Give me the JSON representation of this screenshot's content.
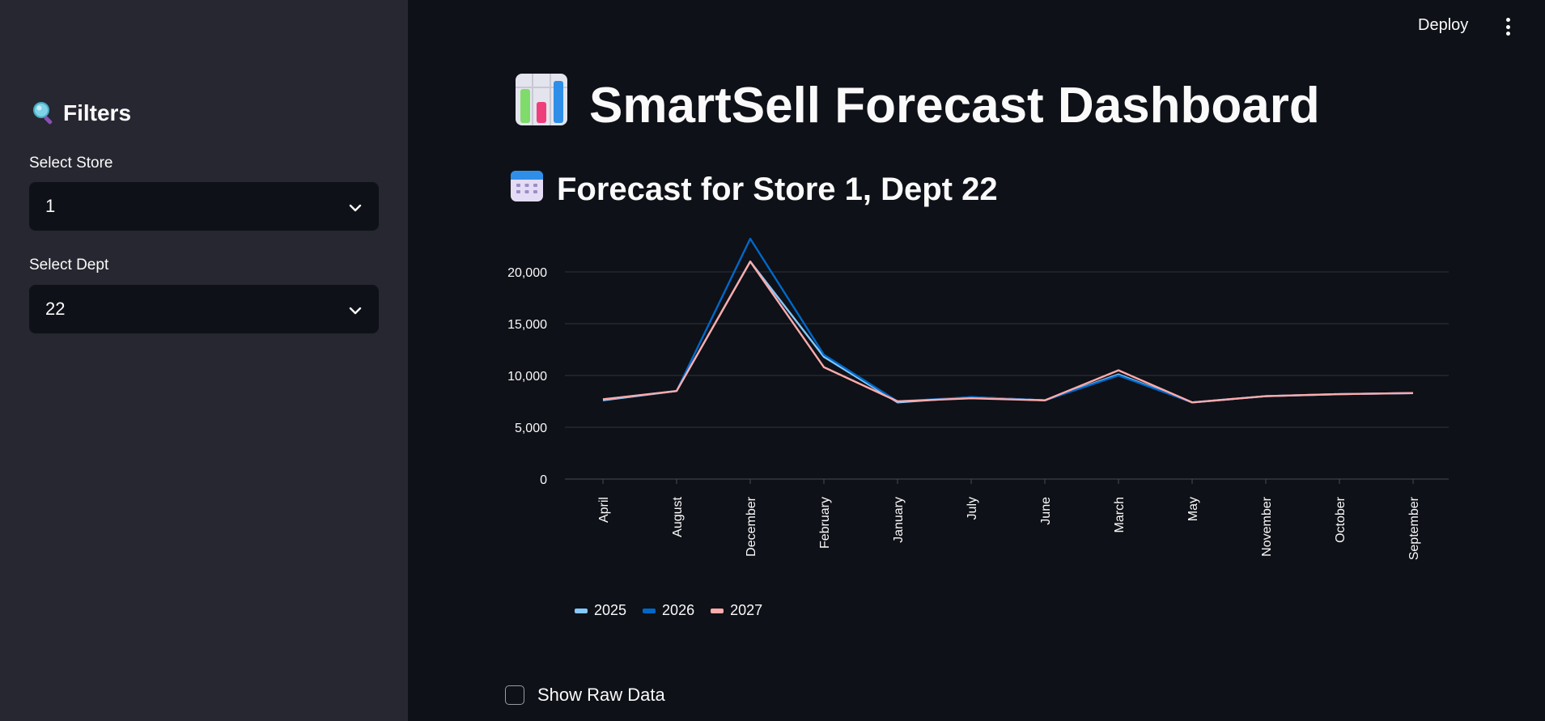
{
  "header": {
    "deploy_label": "Deploy",
    "menu_icon": "kebab-menu-icon"
  },
  "sidebar": {
    "title": "Filters",
    "title_icon": "magnifier-icon",
    "store": {
      "label": "Select Store",
      "value": "1"
    },
    "dept": {
      "label": "Select Dept",
      "value": "22"
    }
  },
  "main": {
    "title": "SmartSell Forecast Dashboard",
    "title_icon": "bar-chart-icon",
    "subtitle": "Forecast for Store 1, Dept 22",
    "subtitle_icon": "calendar-icon",
    "raw_data_label": "Show Raw Data"
  },
  "colors": {
    "background": "#0e1117",
    "sidebar": "#262730",
    "series_2025": "#83c9ff",
    "series_2026": "#0068c9",
    "series_2027": "#ffabab"
  },
  "chart_data": {
    "type": "line",
    "categories": [
      "April",
      "August",
      "December",
      "February",
      "January",
      "July",
      "June",
      "March",
      "May",
      "November",
      "October",
      "September"
    ],
    "ylim": [
      0,
      20000
    ],
    "yticks": [
      "0",
      "5,000",
      "10,000",
      "15,000",
      "20,000"
    ],
    "grid": true,
    "legend": "bottom-left",
    "series": [
      {
        "name": "2025",
        "values": [
          7600,
          8500,
          21000,
          11800,
          7400,
          7900,
          7600,
          10100,
          7400,
          8000,
          8200,
          8300
        ]
      },
      {
        "name": "2026",
        "values": [
          7700,
          8500,
          23200,
          12000,
          7500,
          7900,
          7600,
          10000,
          7400,
          8000,
          8200,
          8300
        ]
      },
      {
        "name": "2027",
        "values": [
          7700,
          8500,
          21000,
          10800,
          7500,
          7800,
          7600,
          10500,
          7400,
          8000,
          8200,
          8300
        ]
      }
    ]
  }
}
